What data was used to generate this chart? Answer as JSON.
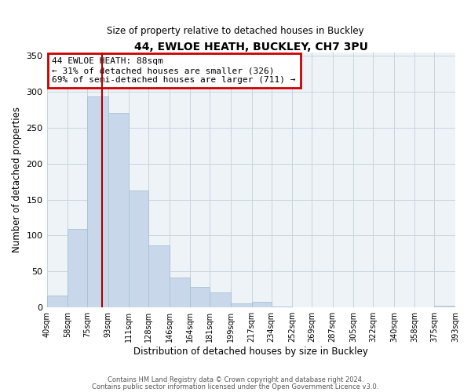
{
  "title": "44, EWLOE HEATH, BUCKLEY, CH7 3PU",
  "subtitle": "Size of property relative to detached houses in Buckley",
  "xlabel": "Distribution of detached houses by size in Buckley",
  "ylabel": "Number of detached properties",
  "bar_color": "#c8d8ea",
  "bar_edge_color": "#a8c0d4",
  "background_color": "#ffffff",
  "axes_bg_color": "#eef3f8",
  "grid_color": "#c8d4de",
  "vline_x": 88,
  "vline_color": "#aa0000",
  "annotation_title": "44 EWLOE HEATH: 88sqm",
  "annotation_line1": "← 31% of detached houses are smaller (326)",
  "annotation_line2": "69% of semi-detached houses are larger (711) →",
  "annotation_box_color": "#cc0000",
  "bin_edges": [
    40,
    58,
    75,
    93,
    111,
    128,
    146,
    164,
    181,
    199,
    217,
    234,
    252,
    269,
    287,
    305,
    322,
    340,
    358,
    375,
    393
  ],
  "bin_counts": [
    16,
    109,
    293,
    270,
    163,
    86,
    41,
    28,
    21,
    5,
    8,
    1,
    0,
    0,
    0,
    0,
    0,
    0,
    0,
    2
  ],
  "tick_labels": [
    "40sqm",
    "58sqm",
    "75sqm",
    "93sqm",
    "111sqm",
    "128sqm",
    "146sqm",
    "164sqm",
    "181sqm",
    "199sqm",
    "217sqm",
    "234sqm",
    "252sqm",
    "269sqm",
    "287sqm",
    "305sqm",
    "322sqm",
    "340sqm",
    "358sqm",
    "375sqm",
    "393sqm"
  ],
  "ylim": [
    0,
    355
  ],
  "yticks": [
    0,
    50,
    100,
    150,
    200,
    250,
    300,
    350
  ],
  "footer1": "Contains HM Land Registry data © Crown copyright and database right 2024.",
  "footer2": "Contains public sector information licensed under the Open Government Licence v3.0."
}
